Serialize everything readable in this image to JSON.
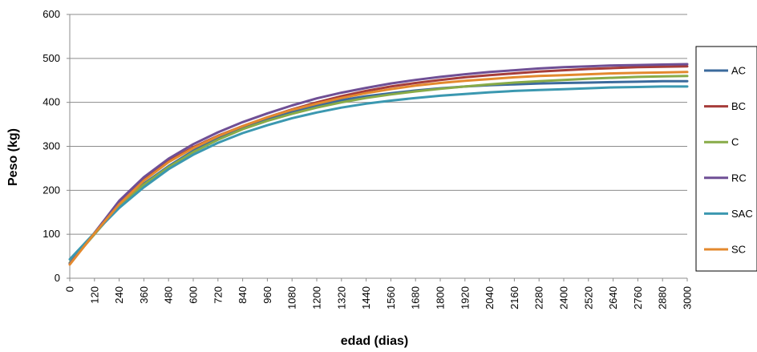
{
  "chart_data": {
    "type": "line",
    "title": "",
    "xlabel": "edad (dias)",
    "ylabel": "Peso (kg)",
    "xlim": [
      0,
      3000
    ],
    "ylim": [
      0,
      600
    ],
    "yticks": [
      0,
      100,
      200,
      300,
      400,
      500,
      600
    ],
    "xticks": [
      0,
      120,
      240,
      360,
      480,
      600,
      720,
      840,
      960,
      1080,
      1200,
      1320,
      1440,
      1560,
      1680,
      1800,
      1920,
      2040,
      2160,
      2280,
      2400,
      2520,
      2640,
      2760,
      2880,
      3000
    ],
    "grid": true,
    "legend_position": "right",
    "x": [
      0,
      120,
      240,
      360,
      480,
      600,
      720,
      840,
      960,
      1080,
      1200,
      1320,
      1440,
      1560,
      1680,
      1800,
      1920,
      2040,
      2160,
      2280,
      2400,
      2520,
      2640,
      2760,
      2880,
      3000
    ],
    "series": [
      {
        "name": "AC",
        "color": "#3b6a9c",
        "values": [
          35,
          100,
          165,
          215,
          255,
          290,
          320,
          343,
          362,
          379,
          393,
          405,
          414,
          421,
          427,
          432,
          436,
          439,
          441,
          443,
          444,
          445,
          446,
          447,
          448,
          448
        ]
      },
      {
        "name": "BC",
        "color": "#a63d3a",
        "values": [
          33,
          103,
          172,
          225,
          266,
          298,
          324,
          346,
          366,
          384,
          400,
          414,
          426,
          436,
          444,
          451,
          457,
          462,
          466,
          470,
          473,
          476,
          478,
          480,
          481,
          482
        ]
      },
      {
        "name": "C",
        "color": "#88ab48",
        "values": [
          35,
          100,
          165,
          213,
          253,
          287,
          315,
          339,
          358,
          374,
          388,
          400,
          410,
          418,
          425,
          431,
          436,
          441,
          445,
          448,
          451,
          454,
          456,
          458,
          459,
          460
        ]
      },
      {
        "name": "RC",
        "color": "#6f4f95",
        "values": [
          33,
          103,
          176,
          230,
          272,
          305,
          332,
          355,
          375,
          393,
          409,
          422,
          433,
          443,
          451,
          458,
          464,
          469,
          473,
          477,
          480,
          482,
          484,
          485,
          486,
          487
        ]
      },
      {
        "name": "SAC",
        "color": "#3b98b0",
        "values": [
          43,
          103,
          160,
          207,
          248,
          281,
          308,
          330,
          348,
          364,
          377,
          388,
          397,
          404,
          410,
          415,
          419,
          423,
          426,
          428,
          430,
          432,
          434,
          435,
          436,
          436
        ]
      },
      {
        "name": "SC",
        "color": "#e3892e",
        "values": [
          31,
          102,
          168,
          222,
          264,
          296,
          323,
          346,
          366,
          383,
          397,
          410,
          421,
          430,
          438,
          444,
          449,
          453,
          457,
          460,
          462,
          464,
          466,
          467,
          468,
          469
        ]
      }
    ]
  }
}
